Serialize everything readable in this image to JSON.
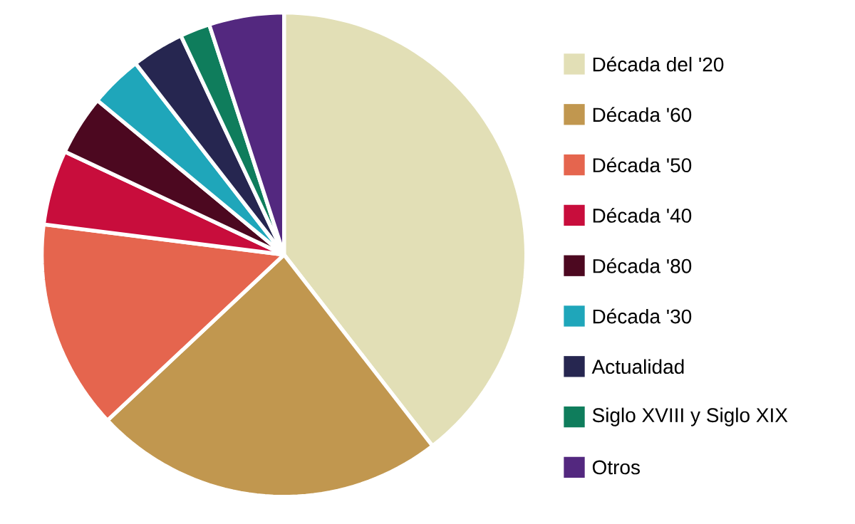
{
  "chart_data": {
    "type": "pie",
    "legend": "right",
    "categories": [
      "Década del '20",
      "Década '60",
      "Década '50",
      "Década '40",
      "Década '80",
      "Década '30",
      "Actualidad",
      "Siglo XVIII y Siglo XIX",
      "Otros"
    ],
    "values": [
      39.5,
      23.5,
      14,
      5,
      4,
      3.5,
      3.5,
      2,
      5
    ],
    "colors": [
      "#e2dfb6",
      "#c1974f",
      "#e5654e",
      "#c80d3c",
      "#4c0820",
      "#1fa6ba",
      "#262650",
      "#0f7d5c",
      "#53287f"
    ]
  }
}
